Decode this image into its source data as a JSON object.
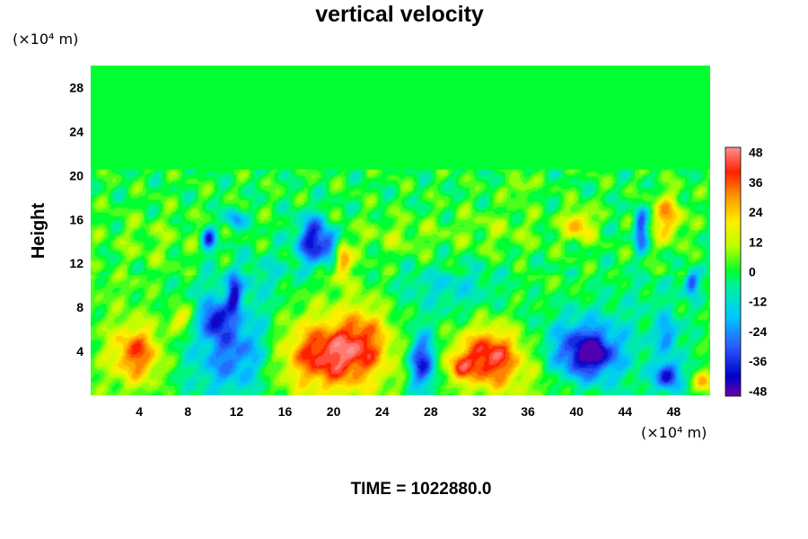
{
  "chart_data": {
    "type": "heatmap",
    "title": "vertical velocity",
    "ylabel": "Height",
    "y_unit": "(×10⁴ m)",
    "x_unit": "(×10⁴ m)",
    "x_ticks": [
      "4",
      "8",
      "12",
      "16",
      "20",
      "24",
      "28",
      "32",
      "36",
      "40",
      "44",
      "48"
    ],
    "x_tick_values": [
      4,
      8,
      12,
      16,
      20,
      24,
      28,
      32,
      36,
      40,
      44,
      48
    ],
    "y_ticks": [
      "4",
      "8",
      "12",
      "16",
      "20",
      "24",
      "28"
    ],
    "y_tick_values": [
      4,
      8,
      12,
      16,
      20,
      24,
      28
    ],
    "xlim": [
      0,
      51
    ],
    "ylim": [
      0,
      30
    ],
    "colorbar": {
      "ticks": [
        "48",
        "36",
        "24",
        "12",
        "0",
        "-12",
        "-24",
        "-36",
        "-48"
      ],
      "tick_values": [
        48,
        36,
        24,
        12,
        0,
        -12,
        -24,
        -36,
        -48
      ],
      "range": [
        -50,
        50
      ]
    },
    "features": [
      {
        "x": 3.8,
        "y": 3.8,
        "sx": 1.4,
        "sy": 1.8,
        "v": 34
      },
      {
        "x": 7.6,
        "y": 7.0,
        "sx": 0.8,
        "sy": 0.8,
        "v": 20
      },
      {
        "x": 10.2,
        "y": 7.0,
        "sx": 0.9,
        "sy": 1.1,
        "v": -32
      },
      {
        "x": 12.3,
        "y": 4.5,
        "sx": 2.0,
        "sy": 2.6,
        "v": -20
      },
      {
        "x": 10.8,
        "y": 3.0,
        "sx": 2.0,
        "sy": 2.0,
        "v": -9
      },
      {
        "x": 19.5,
        "y": 3.8,
        "sx": 2.6,
        "sy": 2.0,
        "v": 30
      },
      {
        "x": 22.5,
        "y": 5.5,
        "sx": 1.4,
        "sy": 2.2,
        "v": 18
      },
      {
        "x": 21.0,
        "y": 3.0,
        "sx": 4.5,
        "sy": 3.0,
        "v": 12
      },
      {
        "x": 27.3,
        "y": 3.0,
        "sx": 0.8,
        "sy": 1.8,
        "v": -40
      },
      {
        "x": 32.8,
        "y": 3.5,
        "sx": 1.8,
        "sy": 1.9,
        "v": 38
      },
      {
        "x": 30.3,
        "y": 2.5,
        "sx": 0.7,
        "sy": 0.9,
        "v": 22
      },
      {
        "x": 33.0,
        "y": 3.5,
        "sx": 3.5,
        "sy": 3.0,
        "v": 10
      },
      {
        "x": 40.8,
        "y": 3.8,
        "sx": 1.9,
        "sy": 1.8,
        "v": -44
      },
      {
        "x": 41.4,
        "y": 3.8,
        "sx": 0.6,
        "sy": 0.6,
        "v": -22
      },
      {
        "x": 47.5,
        "y": 1.8,
        "sx": 0.7,
        "sy": 0.9,
        "v": -38
      },
      {
        "x": 47.5,
        "y": 5.5,
        "sx": 0.6,
        "sy": 1.2,
        "v": -22
      },
      {
        "x": 50.5,
        "y": 1.2,
        "sx": 0.6,
        "sy": 0.7,
        "v": 25
      },
      {
        "x": 38.0,
        "y": 6.0,
        "sx": 4.0,
        "sy": 2.5,
        "v": -10
      },
      {
        "x": 18.2,
        "y": 14.2,
        "sx": 0.9,
        "sy": 1.5,
        "v": -38
      },
      {
        "x": 19.8,
        "y": 13.6,
        "sx": 0.6,
        "sy": 1.0,
        "v": -30
      },
      {
        "x": 20.7,
        "y": 12.4,
        "sx": 0.5,
        "sy": 1.2,
        "v": 38
      },
      {
        "x": 9.7,
        "y": 14.2,
        "sx": 0.4,
        "sy": 0.8,
        "v": -35
      },
      {
        "x": 11.9,
        "y": 16.0,
        "sx": 0.5,
        "sy": 0.7,
        "v": -26
      },
      {
        "x": 11.8,
        "y": 9.2,
        "sx": 0.4,
        "sy": 1.2,
        "v": -32
      },
      {
        "x": 40.2,
        "y": 15.5,
        "sx": 0.8,
        "sy": 1.0,
        "v": 28
      },
      {
        "x": 45.3,
        "y": 15.2,
        "sx": 0.4,
        "sy": 1.4,
        "v": -34
      },
      {
        "x": 47.5,
        "y": 16.2,
        "sx": 0.9,
        "sy": 1.5,
        "v": 28
      },
      {
        "x": 35.3,
        "y": 19.0,
        "sx": 0.5,
        "sy": 0.6,
        "v": 18
      },
      {
        "x": 49.5,
        "y": 10.2,
        "sx": 0.4,
        "sy": 0.8,
        "v": -32
      },
      {
        "x": 25.0,
        "y": 14.5,
        "sx": 2.5,
        "sy": 1.2,
        "v": 8
      },
      {
        "x": 33.5,
        "y": 15.0,
        "sx": 3.0,
        "sy": 1.5,
        "v": 7
      },
      {
        "x": 5.0,
        "y": 14.0,
        "sx": 3.0,
        "sy": 2.0,
        "v": 6
      },
      {
        "x": 14.0,
        "y": 11.0,
        "sx": 3.0,
        "sy": 1.5,
        "v": -8
      },
      {
        "x": 30.0,
        "y": 10.0,
        "sx": 3.0,
        "sy": 1.5,
        "v": -9
      }
    ],
    "time_label": "TIME = 1022880.0"
  }
}
